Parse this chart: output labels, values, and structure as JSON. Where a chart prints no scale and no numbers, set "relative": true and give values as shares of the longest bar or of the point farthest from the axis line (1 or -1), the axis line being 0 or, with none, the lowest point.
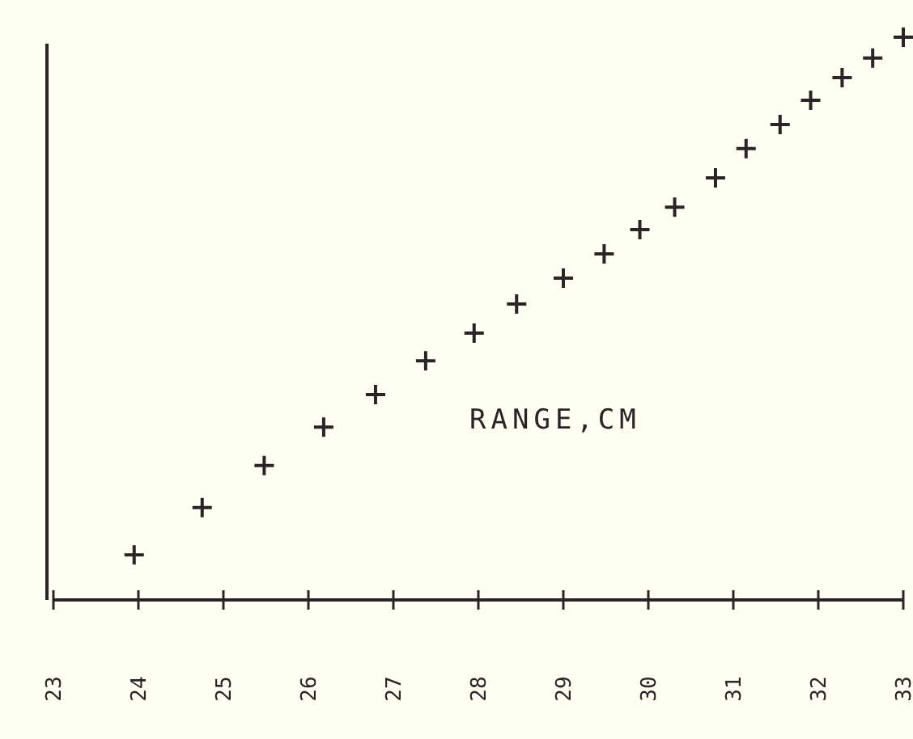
{
  "chart_data": {
    "type": "scatter",
    "relative": true,
    "marker": "cross",
    "color": "#2a2426",
    "annotations": [
      "RANGE,CM"
    ],
    "x": [
      23.95,
      24.75,
      25.48,
      26.18,
      26.79,
      27.38,
      27.95,
      28.45,
      29.0,
      29.48,
      29.9,
      30.31,
      30.79,
      31.15,
      31.55,
      31.91,
      32.28,
      32.64,
      33.0
    ],
    "values": [
      0.08,
      0.164,
      0.239,
      0.307,
      0.365,
      0.425,
      0.474,
      0.526,
      0.572,
      0.615,
      0.658,
      0.698,
      0.75,
      0.802,
      0.845,
      0.888,
      0.928,
      0.963,
      1
    ],
    "xlim": [
      23,
      33
    ],
    "xticks": [
      23,
      24,
      25,
      26,
      27,
      28,
      29,
      30,
      31,
      32,
      33
    ]
  }
}
